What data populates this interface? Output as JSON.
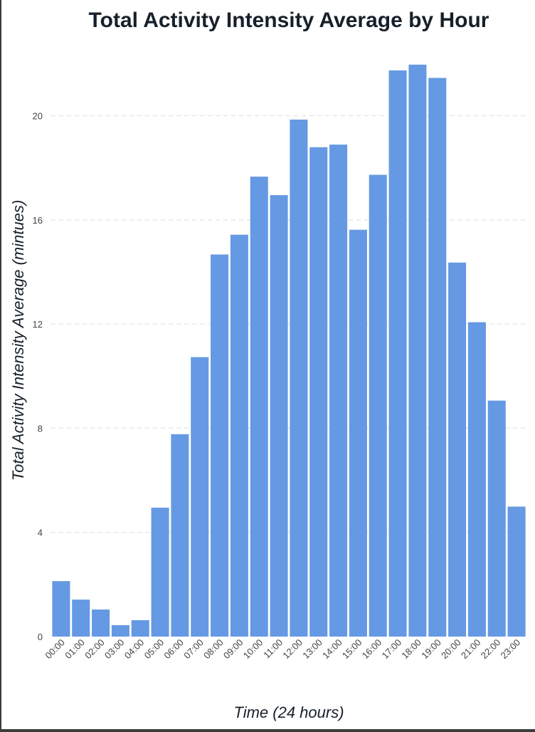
{
  "colors": {
    "bar": "#6699e3",
    "grid": "#e3e3e3",
    "text": "#17202a",
    "tick": "#444444"
  },
  "chart_data": {
    "type": "bar",
    "title": "Total Activity Intensity Average by Hour",
    "xlabel": "Time (24 hours)",
    "ylabel": "Total Activity Intensity Average (mintues)",
    "ylim": [
      0,
      22.2
    ],
    "yticks": [
      "0",
      "4",
      "8",
      "12",
      "16",
      "20"
    ],
    "grid": true,
    "categories": [
      "00:00",
      "01:00",
      "02:00",
      "03:00",
      "04:00",
      "05:00",
      "06:00",
      "07:00",
      "08:00",
      "09:00",
      "10:00",
      "11:00",
      "12:00",
      "13:00",
      "14:00",
      "15:00",
      "16:00",
      "17:00",
      "18:00",
      "19:00",
      "20:00",
      "21:00",
      "22:00",
      "23:00"
    ],
    "values": [
      2.13,
      1.42,
      1.04,
      0.44,
      0.63,
      4.95,
      7.77,
      10.73,
      14.67,
      15.43,
      17.66,
      16.95,
      19.85,
      18.79,
      18.89,
      15.62,
      17.73,
      21.74,
      21.96,
      21.45,
      14.36,
      12.07,
      9.06,
      4.99
    ]
  }
}
